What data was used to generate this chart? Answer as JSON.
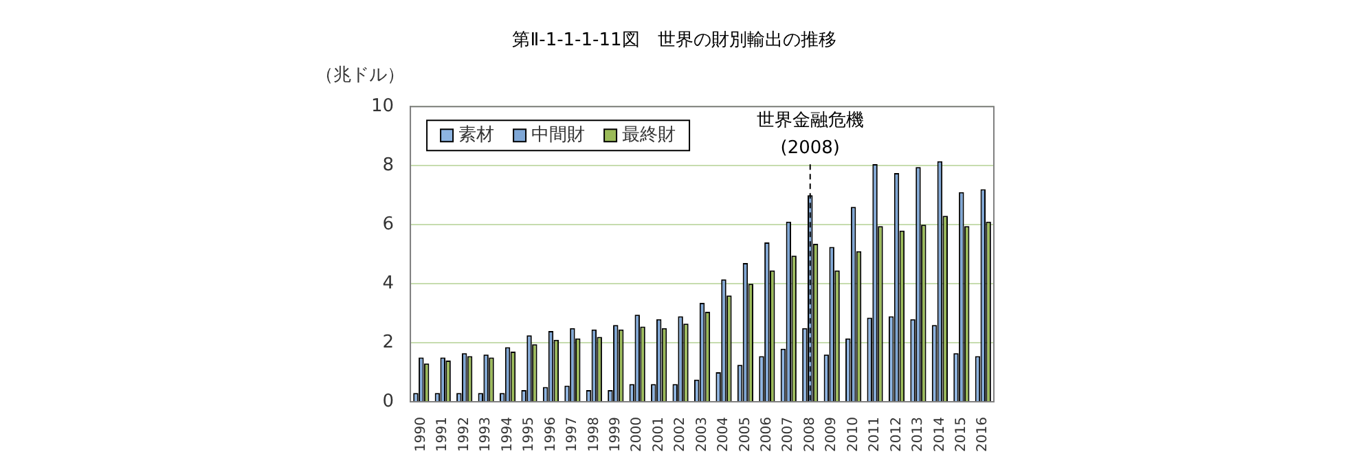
{
  "chart_data": {
    "type": "bar",
    "title": "第Ⅱ-1-1-1-11図　世界の財別輸出の推移",
    "ylabel": "（兆ドル）",
    "categories": [
      "1990",
      "1991",
      "1992",
      "1993",
      "1994",
      "1995",
      "1996",
      "1997",
      "1998",
      "1999",
      "2000",
      "2001",
      "2002",
      "2003",
      "2004",
      "2005",
      "2006",
      "2007",
      "2008",
      "2009",
      "2010",
      "2011",
      "2012",
      "2013",
      "2014",
      "2015",
      "2016"
    ],
    "series": [
      {
        "name": "素材",
        "color": "#8db4e2",
        "values": [
          0.3,
          0.3,
          0.3,
          0.3,
          0.3,
          0.4,
          0.5,
          0.55,
          0.4,
          0.4,
          0.6,
          0.6,
          0.6,
          0.75,
          1.0,
          1.25,
          1.55,
          1.8,
          2.5,
          1.6,
          2.15,
          2.85,
          2.9,
          2.8,
          2.6,
          1.65,
          1.55
        ]
      },
      {
        "name": "中間財",
        "color": "#7fa7d6",
        "values": [
          1.5,
          1.5,
          1.65,
          1.6,
          1.85,
          2.25,
          2.4,
          2.5,
          2.45,
          2.6,
          2.95,
          2.8,
          2.9,
          3.35,
          4.15,
          4.7,
          5.4,
          6.1,
          7.0,
          5.25,
          6.6,
          8.05,
          7.75,
          7.95,
          8.15,
          7.1,
          7.2
        ]
      },
      {
        "name": "最終財",
        "color": "#9bbb59",
        "values": [
          1.3,
          1.4,
          1.55,
          1.5,
          1.7,
          1.95,
          2.1,
          2.15,
          2.2,
          2.45,
          2.55,
          2.5,
          2.65,
          3.05,
          3.6,
          4.0,
          4.45,
          4.95,
          5.35,
          4.45,
          5.1,
          5.95,
          5.8,
          6.0,
          6.3,
          5.95,
          6.1
        ]
      }
    ],
    "ylim": [
      0,
      10
    ],
    "yticks": [
      0,
      2,
      4,
      6,
      8,
      10
    ],
    "grid": "y",
    "legend": "top left",
    "ref_lines": [
      {
        "axis": "x",
        "value": "2008",
        "label": "世界金融危機\n(2008)",
        "line_style": "dashed"
      }
    ]
  }
}
